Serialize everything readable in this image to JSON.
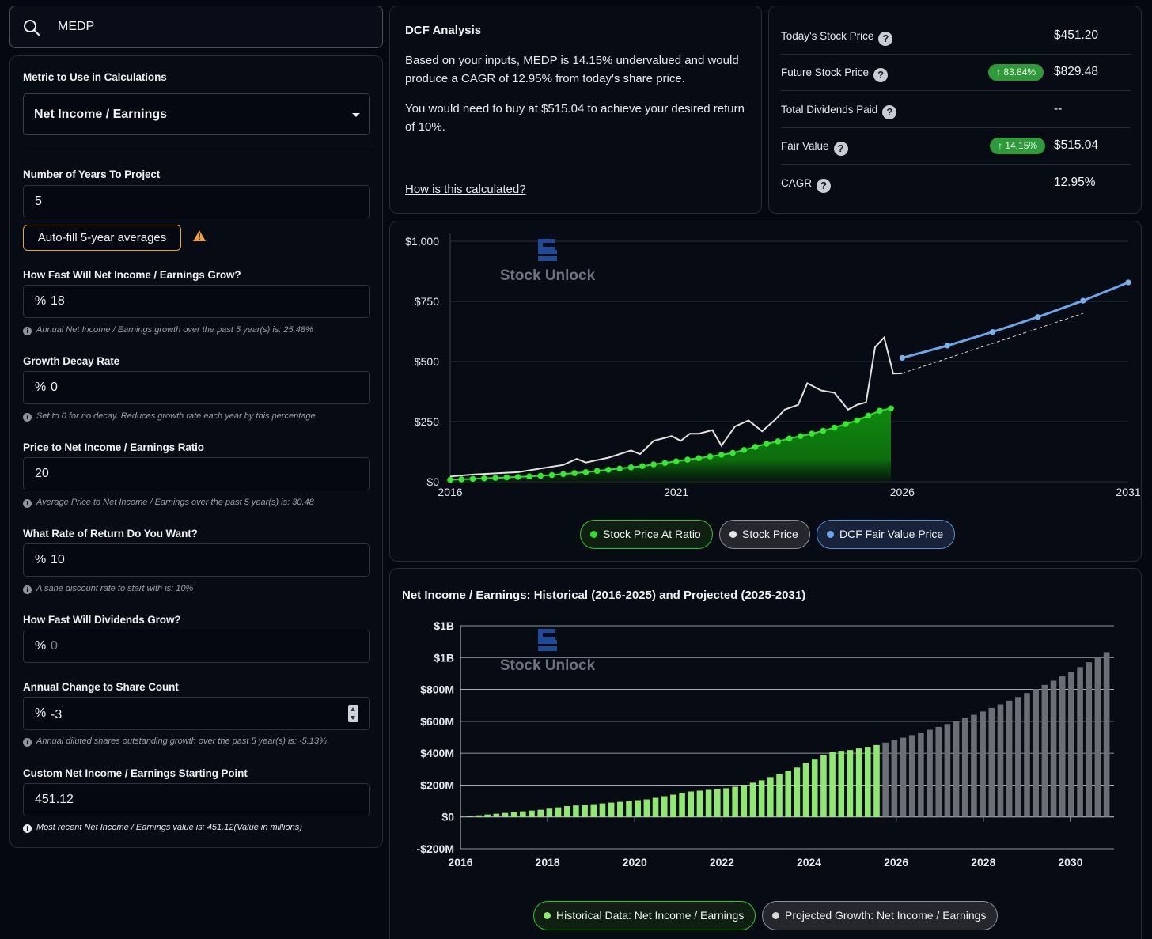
{
  "search": {
    "value": "MEDP",
    "icon": "search-icon"
  },
  "form": {
    "metric_label": "Metric to Use in Calculations",
    "metric_value": "Net Income / Earnings",
    "years_label": "Number of Years To Project",
    "years_value": "5",
    "autofill_label": "Auto-fill 5-year averages",
    "growth_label": "How Fast Will Net Income / Earnings Grow?",
    "growth_value": "18",
    "growth_hint": "Annual Net Income / Earnings growth over the past 5 year(s) is: 25.48%",
    "decay_label": "Growth Decay Rate",
    "decay_value": "0",
    "decay_hint": "Set to 0 for no decay. Reduces growth rate each year by this percentage.",
    "ratio_label": "Price to Net Income / Earnings Ratio",
    "ratio_value": "20",
    "ratio_hint": "Average Price to Net Income / Earnings over the past 5 year(s) is: 30.48",
    "return_label": "What Rate of Return Do You Want?",
    "return_value": "10",
    "return_hint": "A sane discount rate to start with is: 10%",
    "div_label": "How Fast Will Dividends Grow?",
    "div_placeholder": "0",
    "share_label": "Annual Change to Share Count",
    "share_value": "-3",
    "share_hint": "Annual diluted shares outstanding growth over the past 5 year(s) is: -5.13%",
    "start_label": "Custom Net Income / Earnings Starting Point",
    "start_value": "451.12",
    "start_hint": "Most recent Net Income / Earnings value is: 451.12(Value in millions)",
    "pct": "%"
  },
  "dcf": {
    "title": "DCF Analysis",
    "para1": "Based on your inputs, MEDP is 14.15% undervalued and would produce a CAGR of 12.95% from today's share price.",
    "para2": "You would need to buy at $515.04 to achieve your desired return of 10%.",
    "link": "How is this calculated?"
  },
  "stats": {
    "today_label": "Today's Stock Price",
    "today_value": "$451.20",
    "future_label": "Future Stock Price",
    "future_badge": "↑ 83.84%",
    "future_value": "$829.48",
    "div_label": "Total Dividends Paid",
    "div_value": "--",
    "fair_label": "Fair Value",
    "fair_badge": "↑ 14.15%",
    "fair_value": "$515.04",
    "cagr_label": "CAGR",
    "cagr_value": "12.95%",
    "help": "?"
  },
  "watermark": "Stock Unlock",
  "colors": {
    "green": "#22c51e",
    "bar_green": "#8ee872",
    "bar_gray": "#6b6e75",
    "blue": "#6aa6ea",
    "badge": "#2f9a3a"
  },
  "chart_data": [
    {
      "type": "line",
      "yticks": [
        "$0",
        "$250",
        "$500",
        "$750",
        "$1,000"
      ],
      "xticks": [
        "2016",
        "2021",
        "2026",
        "2031"
      ],
      "ylim": [
        0,
        1000
      ],
      "xlim": [
        2016,
        2031
      ],
      "series": [
        {
          "name": "Stock Price At Ratio",
          "x": [
            2016.0,
            2016.25,
            2016.5,
            2016.75,
            2017.0,
            2017.25,
            2017.5,
            2017.75,
            2018.0,
            2018.25,
            2018.5,
            2018.75,
            2019.0,
            2019.25,
            2019.5,
            2019.75,
            2020.0,
            2020.25,
            2020.5,
            2020.75,
            2021.0,
            2021.25,
            2021.5,
            2021.75,
            2022.0,
            2022.25,
            2022.5,
            2022.75,
            2023.0,
            2023.25,
            2023.5,
            2023.75,
            2024.0,
            2024.25,
            2024.5,
            2024.75,
            2025.0,
            2025.25,
            2025.5,
            2025.75
          ],
          "y": [
            8,
            10,
            12,
            14,
            16,
            18,
            20,
            22,
            25,
            28,
            32,
            36,
            40,
            45,
            50,
            55,
            60,
            65,
            72,
            78,
            85,
            92,
            98,
            105,
            112,
            120,
            132,
            145,
            158,
            168,
            180,
            190,
            200,
            212,
            225,
            240,
            255,
            275,
            295,
            305
          ]
        },
        {
          "name": "Stock Price",
          "x": [
            2016.0,
            2016.5,
            2017.0,
            2017.5,
            2018.0,
            2018.5,
            2018.8,
            2019.0,
            2019.5,
            2020.0,
            2020.2,
            2020.5,
            2020.9,
            2021.1,
            2021.3,
            2021.5,
            2021.8,
            2022.0,
            2022.3,
            2022.6,
            2022.9,
            2023.2,
            2023.4,
            2023.7,
            2023.9,
            2024.2,
            2024.5,
            2024.8,
            2025.0,
            2025.2,
            2025.4,
            2025.6,
            2025.8,
            2026.0
          ],
          "y": [
            22,
            30,
            35,
            40,
            55,
            70,
            95,
            80,
            100,
            130,
            115,
            170,
            190,
            170,
            200,
            200,
            215,
            150,
            230,
            255,
            210,
            260,
            300,
            320,
            410,
            380,
            370,
            300,
            320,
            330,
            560,
            600,
            450,
            451
          ]
        },
        {
          "name": "DCF Fair Value Price",
          "x": [
            2026,
            2027,
            2028,
            2029,
            2030,
            2031
          ],
          "y": [
            515,
            566,
            623,
            685,
            753,
            829
          ]
        }
      ]
    },
    {
      "type": "bar",
      "title": "Net Income / Earnings: Historical (2016-2025) and Projected (2025-2031)",
      "yticks": [
        "-$200M",
        "$0",
        "$200M",
        "$400M",
        "$600M",
        "$800M",
        "$1B",
        "$1B"
      ],
      "xticks": [
        "2016",
        "2018",
        "2020",
        "2022",
        "2024",
        "2026",
        "2028",
        "2030"
      ],
      "ylim": [
        -200,
        1200
      ],
      "xlim": [
        2016,
        2031
      ],
      "series": [
        {
          "name": "Historical Data: Net Income / Earnings",
          "values": [
            5,
            10,
            15,
            20,
            25,
            30,
            35,
            40,
            45,
            52,
            60,
            68,
            72,
            75,
            80,
            85,
            90,
            95,
            100,
            105,
            110,
            120,
            130,
            140,
            150,
            160,
            165,
            170,
            175,
            180,
            190,
            200,
            215,
            230,
            250,
            270,
            290,
            310,
            340,
            360,
            390,
            410,
            415,
            420,
            430,
            440,
            451
          ]
        },
        {
          "name": "Projected Growth: Net Income / Earnings",
          "values": [
            466,
            482,
            497,
            513,
            530,
            547,
            565,
            583,
            602,
            621,
            641,
            662,
            684,
            706,
            729,
            752,
            777,
            802,
            828,
            855,
            882,
            911,
            940,
            971,
            1002,
            1034
          ]
        }
      ]
    }
  ]
}
